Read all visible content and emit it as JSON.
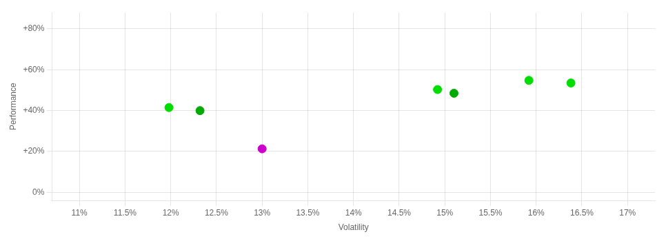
{
  "chart_data": {
    "type": "scatter",
    "xlabel": "Volatility",
    "ylabel": "Performance",
    "x": [
      0.1198,
      0.1232,
      0.13,
      0.1492,
      0.151,
      0.1592,
      0.1638
    ],
    "values": [
      0.415,
      0.4,
      0.213,
      0.503,
      0.485,
      0.548,
      0.535
    ],
    "colors": [
      "#00dd00",
      "#00aa00",
      "#cc00cc",
      "#00dd00",
      "#00aa00",
      "#00dd00",
      "#00dd00"
    ],
    "xlim": [
      0.107,
      0.173
    ],
    "xticks": [
      {
        "value": 0.11,
        "label": "11%"
      },
      {
        "value": 0.115,
        "label": "11.5%"
      },
      {
        "value": 0.12,
        "label": "12%"
      },
      {
        "value": 0.125,
        "label": "12.5%"
      },
      {
        "value": 0.13,
        "label": "13%"
      },
      {
        "value": 0.135,
        "label": "13.5%"
      },
      {
        "value": 0.14,
        "label": "14%"
      },
      {
        "value": 0.145,
        "label": "14.5%"
      },
      {
        "value": 0.15,
        "label": "15%"
      },
      {
        "value": 0.155,
        "label": "15.5%"
      },
      {
        "value": 0.16,
        "label": "16%"
      },
      {
        "value": 0.165,
        "label": "16.5%"
      },
      {
        "value": 0.17,
        "label": "17%"
      }
    ],
    "ylim": [
      -0.04,
      0.88
    ],
    "yticks": [
      {
        "value": 0.0,
        "label": "0%"
      },
      {
        "value": 0.2,
        "label": "+20%"
      },
      {
        "value": 0.4,
        "label": "+40%"
      },
      {
        "value": 0.6,
        "label": "+60%"
      },
      {
        "value": 0.8,
        "label": "+80%"
      }
    ],
    "grid": true
  }
}
